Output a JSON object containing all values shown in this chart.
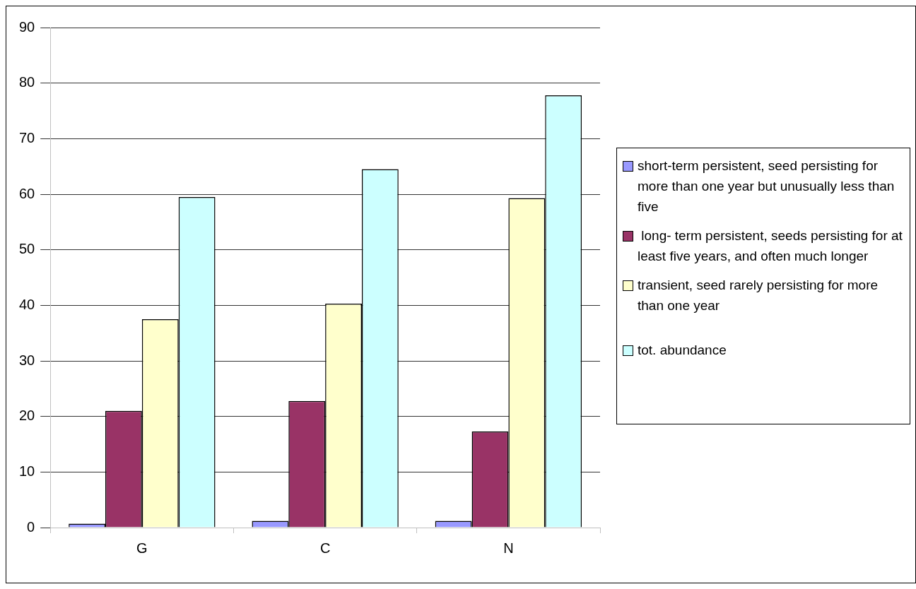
{
  "chart_data": {
    "type": "bar",
    "categories": [
      "G",
      "C",
      "N"
    ],
    "series": [
      {
        "name": "short-term persistent, seed persisting for more than one year but unusually less than five",
        "color": "#9999ff",
        "values": [
          0.7,
          1.2,
          1.2
        ]
      },
      {
        "name": " long- term persistent, seeds persisting for at least five years, and often much longer",
        "color": "#993366",
        "values": [
          21,
          22.8,
          17.3
        ]
      },
      {
        "name": "transient, seed rarely persisting for more than one year",
        "color": "#ffffcc",
        "values": [
          37.5,
          40.3,
          59.3
        ]
      },
      {
        "name": "tot. abundance",
        "color": "#ccffff",
        "values": [
          59.5,
          64.5,
          77.8
        ]
      }
    ],
    "ylim": [
      0,
      90
    ],
    "yticks": [
      0,
      10,
      20,
      30,
      40,
      50,
      60,
      70,
      80,
      90
    ],
    "grid": "y",
    "legend": "right"
  }
}
